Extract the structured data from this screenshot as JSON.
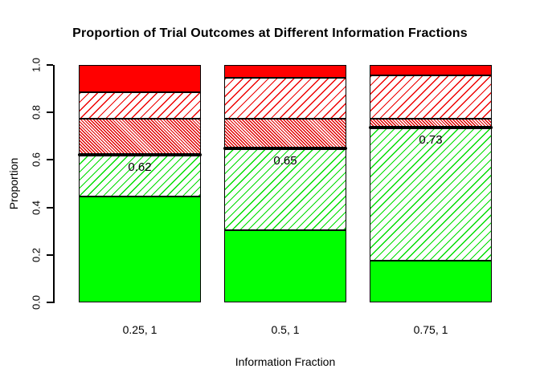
{
  "chart_data": {
    "type": "bar",
    "stacked": true,
    "title": "Proportion of Trial Outcomes at Different Information Fractions",
    "xlabel": "Information Fraction",
    "ylabel": "Proportion",
    "ylim": [
      0,
      1.0
    ],
    "y_tick_labels": [
      "0.0",
      "0.2",
      "0.4",
      "0.6",
      "0.8",
      "1.0"
    ],
    "grid": false,
    "legend": "none",
    "categories": [
      "0.25, 1",
      "0.5, 1",
      "0.75, 1"
    ],
    "series": [
      {
        "name": "solid-green-segment",
        "style": "solid-green",
        "values": [
          0.445,
          0.305,
          0.175
        ]
      },
      {
        "name": "green-hatch-segment",
        "style": "hatch-green",
        "values": [
          0.175,
          0.345,
          0.56
        ]
      },
      {
        "name": "dense-red-hatch-segment",
        "style": "hatch-dense-red",
        "values": [
          0.155,
          0.125,
          0.04
        ]
      },
      {
        "name": "red-hatch-segment",
        "style": "hatch-red",
        "values": [
          0.11,
          0.17,
          0.18
        ]
      },
      {
        "name": "solid-red-segment",
        "style": "solid-red",
        "values": [
          0.115,
          0.055,
          0.045
        ]
      }
    ],
    "threshold_lines": [
      {
        "value": 0.62,
        "label": "0.62"
      },
      {
        "value": 0.65,
        "label": "0.65"
      },
      {
        "value": 0.735,
        "label": "0.73"
      }
    ]
  },
  "colors": {
    "solid_green": "#00FF00",
    "solid_red": "#FF0000",
    "hatch_green_line": "#00DD00",
    "hatch_red_line": "#EE0000",
    "hatch_dense_red_line": "#E00000",
    "threshold_line": "#000000",
    "axis": "#000000",
    "background": "#FFFFFF"
  }
}
